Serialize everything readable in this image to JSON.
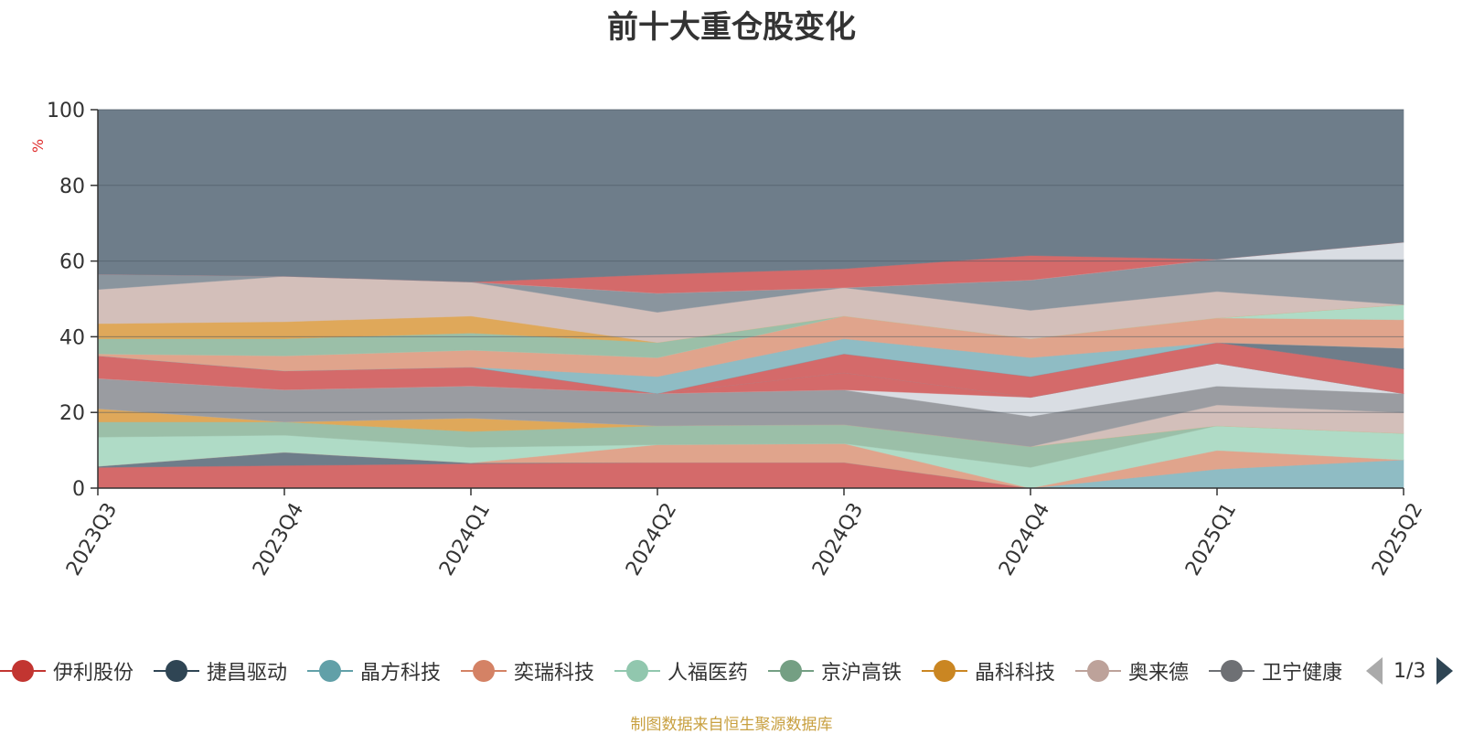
{
  "title": "前十大重仓股变化",
  "source_note": "制图数据来自恒生聚源数据库",
  "legend": {
    "page_indicator": "1/3"
  },
  "chart_data": {
    "type": "area",
    "title": "前十大重仓股变化",
    "ylabel": "%",
    "ylim": [
      0,
      100
    ],
    "yticks": [
      0,
      20,
      40,
      60,
      80,
      100
    ],
    "grid": true,
    "stacked": true,
    "x": [
      "2023Q3",
      "2023Q4",
      "2024Q1",
      "2024Q2",
      "2024Q3",
      "2024Q4",
      "2025Q1",
      "2025Q2"
    ],
    "bands": [
      {
        "color": "#d46a6a",
        "lower": [
          0,
          0,
          0,
          0,
          0,
          0,
          0,
          0
        ],
        "upper": [
          5.5,
          6,
          6.5,
          6.8,
          6.8,
          0,
          0,
          0
        ]
      },
      {
        "color": "#6e7d8a",
        "lower": [
          5.5,
          6,
          6.5,
          6.8,
          6.8,
          0,
          0,
          0
        ],
        "upper": [
          5.8,
          9.5,
          6.7,
          6.8,
          6.8,
          0,
          0,
          0
        ]
      },
      {
        "color": "#8fbcc4",
        "lower": [
          0,
          0,
          0,
          0,
          0,
          0,
          0,
          0
        ],
        "upper": [
          0,
          0,
          0,
          0,
          0,
          0,
          5,
          7.5
        ]
      },
      {
        "color": "#e0a48c",
        "lower": [
          5.8,
          9.5,
          6.7,
          6.8,
          6.8,
          0,
          5,
          7.5
        ],
        "upper": [
          5.8,
          9.5,
          6.7,
          11.5,
          11.8,
          0,
          10,
          7.5
        ]
      },
      {
        "color": "#afdbc6",
        "lower": [
          5.8,
          9.5,
          6.7,
          11.5,
          11.8,
          0,
          10,
          7.5
        ],
        "upper": [
          13.5,
          14,
          10.8,
          11.5,
          11.8,
          5.5,
          16.5,
          14.5
        ]
      },
      {
        "color": "#9bbfa8",
        "lower": [
          13.5,
          14,
          10.8,
          11.5,
          11.8,
          5.5,
          16.5,
          14.5
        ],
        "upper": [
          17.5,
          17.5,
          15,
          16.5,
          16.8,
          11,
          16.5,
          14.5
        ]
      },
      {
        "color": "#dfa85a",
        "lower": [
          17.5,
          17.5,
          15,
          16.5,
          16.8,
          11,
          16.5,
          14.5
        ],
        "upper": [
          21,
          17.5,
          18.5,
          16.5,
          16.8,
          11,
          16.5,
          14.5
        ]
      },
      {
        "color": "#d3bfba",
        "lower": [
          21,
          17.5,
          18.5,
          16.5,
          16.8,
          11,
          16.5,
          14.5
        ],
        "upper": [
          21,
          17.5,
          18.5,
          16.5,
          16.8,
          11,
          22,
          20
        ]
      },
      {
        "color": "#9a9ca1",
        "lower": [
          21,
          17.5,
          18.5,
          16.5,
          16.8,
          11,
          22,
          20
        ],
        "upper": [
          29,
          26,
          27,
          25,
          26,
          19,
          27,
          25
        ]
      },
      {
        "color": "#d9dde3",
        "lower": [
          29,
          26,
          27,
          25,
          26,
          19,
          27,
          25
        ],
        "upper": [
          29,
          26,
          27,
          25,
          26,
          24,
          33,
          25
        ]
      },
      {
        "color": "#d46a6a",
        "lower": [
          29,
          26,
          27,
          25,
          26,
          24,
          33,
          25
        ],
        "upper": [
          35,
          31,
          32,
          25,
          30.5,
          24,
          33,
          25
        ]
      },
      {
        "color": "#8a959e",
        "lower": [
          35,
          31,
          32,
          25,
          30.5,
          24,
          33,
          25
        ],
        "upper": [
          35,
          31,
          32,
          25,
          30.5,
          24,
          33,
          25
        ]
      },
      {
        "color": "#d46a6a",
        "lower": [
          35,
          31,
          32,
          25,
          30.5,
          24,
          33,
          25
        ],
        "upper": [
          35,
          31,
          32,
          25,
          35.5,
          29.5,
          38.5,
          31.5
        ]
      },
      {
        "color": "#6e7d8a",
        "lower": [
          35,
          31,
          32,
          25,
          35.5,
          29.5,
          38.5,
          31.5
        ],
        "upper": [
          35,
          31,
          32,
          25,
          35.5,
          29.5,
          38.5,
          37
        ]
      },
      {
        "color": "#8fbcc4",
        "lower": [
          35,
          31,
          32,
          25,
          35.5,
          29.5,
          38.5,
          37
        ],
        "upper": [
          35,
          31,
          32,
          29.5,
          39.5,
          34.5,
          38.5,
          37
        ]
      },
      {
        "color": "#e0a48c",
        "lower": [
          35,
          31,
          32,
          29.5,
          39.5,
          34.5,
          38.5,
          37
        ],
        "upper": [
          35.5,
          35,
          36.5,
          34.5,
          45.5,
          39.5,
          45,
          44.5
        ]
      },
      {
        "color": "#afdbc6",
        "lower": [
          35.5,
          35,
          36.5,
          34.5,
          45.5,
          39.5,
          45,
          44.5
        ],
        "upper": [
          35.5,
          35,
          36.5,
          34.5,
          45.5,
          39.5,
          45,
          48.5
        ]
      },
      {
        "color": "#9bbfa8",
        "lower": [
          35.5,
          35,
          36.5,
          34.5,
          45.5,
          39.5,
          45,
          48.5
        ],
        "upper": [
          39.5,
          39.5,
          41,
          38.5,
          45.5,
          39.5,
          45,
          48.5
        ]
      },
      {
        "color": "#dfa85a",
        "lower": [
          39.5,
          39.5,
          41,
          38.5,
          45.5,
          39.5,
          45,
          48.5
        ],
        "upper": [
          43.5,
          44,
          45.5,
          38.5,
          45.5,
          39.5,
          45,
          48.5
        ]
      },
      {
        "color": "#d3bfba",
        "lower": [
          43.5,
          44,
          45.5,
          38.5,
          45.5,
          39.5,
          45,
          48.5
        ],
        "upper": [
          52.5,
          56,
          54.5,
          46.5,
          53,
          47,
          52,
          48.5
        ]
      },
      {
        "color": "#8a959e",
        "lower": [
          52.5,
          56,
          54.5,
          46.5,
          53,
          47,
          52,
          48.5
        ],
        "upper": [
          56.5,
          56,
          54.5,
          51.5,
          53,
          55,
          60.5,
          60.5
        ]
      },
      {
        "color": "#d9dde3",
        "lower": [
          56.5,
          56,
          54.5,
          51.5,
          53,
          55,
          60.5,
          60.5
        ],
        "upper": [
          56.5,
          56,
          54.5,
          51.5,
          53,
          55,
          60.5,
          65
        ]
      },
      {
        "color": "#d46a6a",
        "lower": [
          56.5,
          56,
          54.5,
          51.5,
          53,
          55,
          60.5,
          65
        ],
        "upper": [
          56.5,
          56,
          54.5,
          56.5,
          58,
          61.5,
          60.5,
          65
        ]
      },
      {
        "color": "#6e7d8a",
        "lower": [
          56.5,
          56,
          54.5,
          56.5,
          58,
          61.5,
          60.5,
          65
        ],
        "upper": [
          100,
          100,
          100,
          100,
          100,
          100,
          100,
          100
        ]
      }
    ],
    "legend": {
      "placement": "bottom",
      "entries": [
        {
          "name": "伊利股份",
          "color": "#c23531"
        },
        {
          "name": "捷昌驱动",
          "color": "#2f4554"
        },
        {
          "name": "晶方科技",
          "color": "#61a0a8"
        },
        {
          "name": "奕瑞科技",
          "color": "#d48265"
        },
        {
          "name": "人福医药",
          "color": "#91c7ae"
        },
        {
          "name": "京沪高铁",
          "color": "#749f83"
        },
        {
          "name": "晶科科技",
          "color": "#ca8622"
        },
        {
          "name": "奥来德",
          "color": "#bda29a"
        },
        {
          "name": "卫宁健康",
          "color": "#6e7074"
        }
      ]
    }
  }
}
